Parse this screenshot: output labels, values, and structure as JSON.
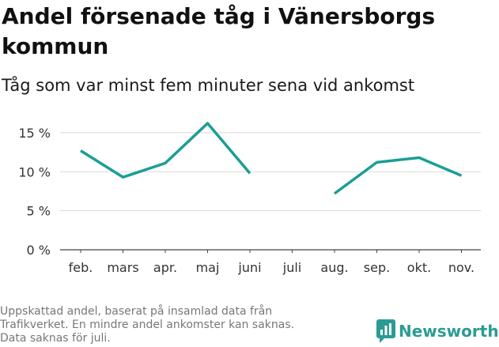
{
  "title": "Andel försenade tåg i Vänersborgs kommun",
  "subtitle": "Tåg som var minst fem minuter sena vid ankomst",
  "footnote": {
    "line1": "Uppskattad andel, baserat på insamlad data från",
    "line2": "Trafikverket. En mindre andel ankomster kan saknas.",
    "line3": "Data saknas för juli."
  },
  "brand": {
    "name": "Newsworthy",
    "color": "#2a9c94"
  },
  "chart_data": {
    "type": "line",
    "categories": [
      "feb.",
      "mars",
      "apr.",
      "maj",
      "juni",
      "juli",
      "aug.",
      "sep.",
      "okt.",
      "nov."
    ],
    "series": [
      {
        "values": [
          12.7,
          9.3,
          11.1,
          16.2,
          9.8,
          null,
          7.2,
          11.2,
          11.8,
          9.5
        ],
        "color": "#1a9e96"
      }
    ],
    "ylim": [
      0,
      16
    ],
    "yticks": [
      0,
      5,
      10,
      15
    ],
    "ytick_labels": [
      "0 %",
      "5 %",
      "10 %",
      "15 %"
    ],
    "grid": true,
    "legend": "none"
  }
}
